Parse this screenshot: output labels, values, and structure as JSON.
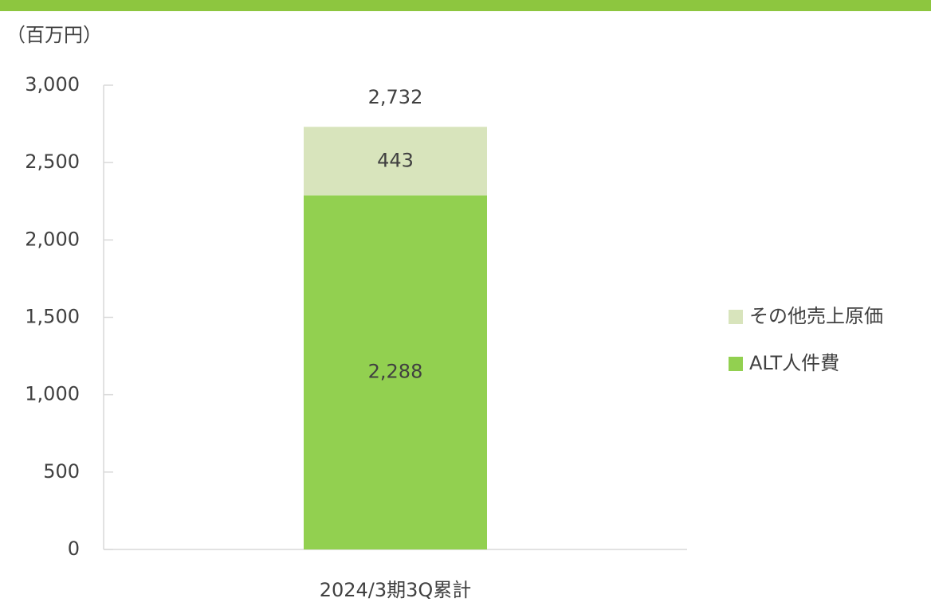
{
  "chart_data": {
    "type": "stacked_bar",
    "unit_label": "（百万円）",
    "categories": [
      "2024/3期3Q累計"
    ],
    "series": [
      {
        "name": "ALT人件費",
        "color": "#92d050",
        "values": [
          2288
        ],
        "value_labels": [
          "2,288"
        ]
      },
      {
        "name": "その他売上原価",
        "color": "#d8e4bc",
        "values": [
          443
        ],
        "value_labels": [
          "443"
        ]
      }
    ],
    "totals": [
      2732
    ],
    "total_labels": [
      "2,732"
    ],
    "ylim": [
      0,
      3000
    ],
    "yticks": [
      0,
      500,
      {
        "value": 1000,
        "label": "1,000"
      },
      {
        "value": 1500,
        "label": "1,500"
      },
      {
        "value": 2000,
        "label": "2,000"
      },
      {
        "value": 2500,
        "label": "2,500"
      },
      {
        "value": 3000,
        "label": "3,000"
      }
    ],
    "legend": "right"
  }
}
